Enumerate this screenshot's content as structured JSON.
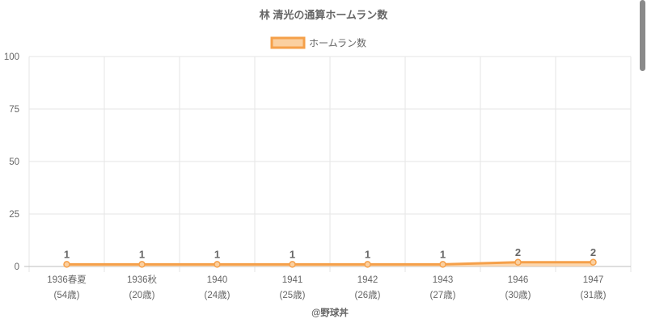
{
  "chart_data": {
    "type": "area",
    "title": "林 清光の通算ホームラン数",
    "categories": [
      "1936春夏",
      "1936秋",
      "1940",
      "1941",
      "1942",
      "1943",
      "1946",
      "1947"
    ],
    "category_sublabels": [
      "(54歳)",
      "(20歳)",
      "(24歳)",
      "(25歳)",
      "(26歳)",
      "(27歳)",
      "(30歳)",
      "(31歳)"
    ],
    "series": [
      {
        "name": "ホームラン数",
        "values": [
          1,
          1,
          1,
          1,
          1,
          1,
          2,
          2
        ],
        "color": "#f5a04a",
        "fill": "#fbd0a0"
      }
    ],
    "data_labels": [
      "1",
      "1",
      "1",
      "1",
      "1",
      "1",
      "2",
      "2"
    ],
    "ylim": [
      0,
      100
    ],
    "y_ticks": [
      "0",
      "25",
      "50",
      "75",
      "100"
    ],
    "y_tick_values": [
      0,
      25,
      50,
      75,
      100
    ],
    "grid": true,
    "legend_position": "top-center",
    "xlabel": "",
    "ylabel": ""
  },
  "footer": {
    "credit": "@野球丼"
  },
  "colors": {
    "grid": "#e6e6e6",
    "axis": "#bdbdbd",
    "text": "#666666",
    "title": "#666666",
    "scrollbar": "#8a8a8a"
  }
}
